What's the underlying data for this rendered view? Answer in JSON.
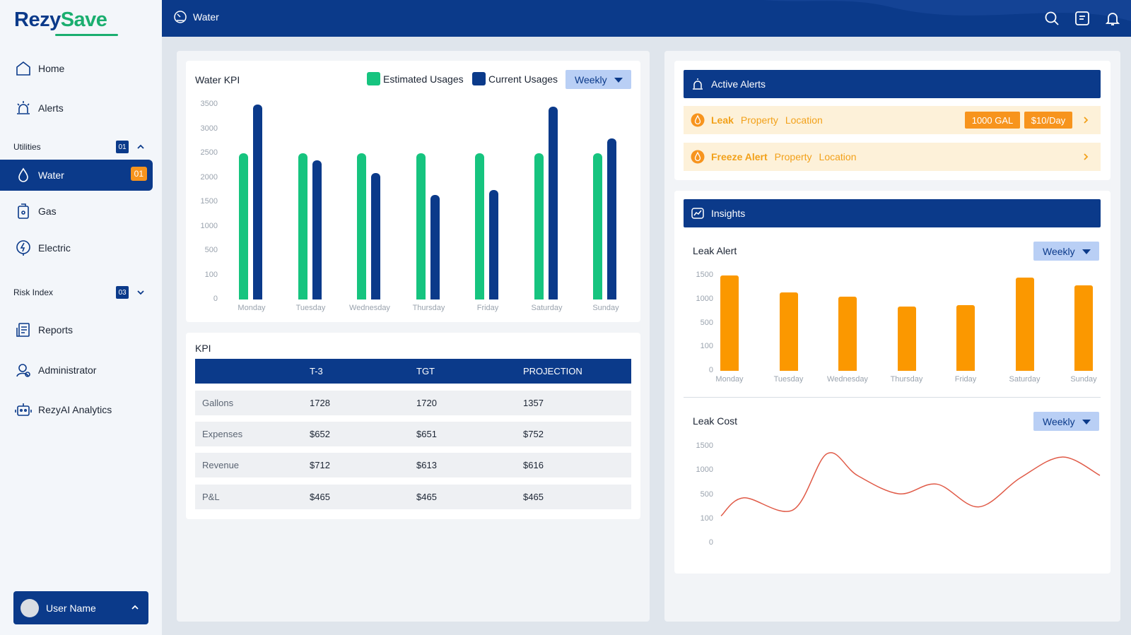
{
  "app": {
    "logo_part1": "Rezy",
    "logo_part2": "Save",
    "page_title": "Water"
  },
  "colors": {
    "primary": "#0b3a8a",
    "estimated": "#16c47f",
    "current": "#0b3a8a",
    "leak_bar": "#fb9800",
    "line": "#e05a47",
    "alert_bg": "#fdf1d9",
    "alert_text": "#f2a11a"
  },
  "sidebar": {
    "items_top": [
      {
        "label": "Home",
        "icon": "home-icon"
      },
      {
        "label": "Alerts",
        "icon": "alarm-icon"
      }
    ],
    "utilities": {
      "label": "Utilities",
      "badge": "01",
      "items": [
        {
          "label": "Water",
          "icon": "water-drop-icon",
          "badge": "01",
          "active": true
        },
        {
          "label": "Gas",
          "icon": "gas-icon"
        },
        {
          "label": "Electric",
          "icon": "electric-icon"
        }
      ]
    },
    "risk_index": {
      "label": "Risk Index",
      "badge": "03"
    },
    "items_bottom": [
      {
        "label": "Reports",
        "icon": "reports-icon"
      },
      {
        "label": "Administrator",
        "icon": "administrator-icon"
      },
      {
        "label": "RezyAI Analytics",
        "icon": "robot-icon"
      }
    ],
    "user": {
      "name": "User Name"
    }
  },
  "topbar": {
    "icons": [
      "search-icon",
      "notes-icon",
      "bell-icon"
    ]
  },
  "water_kpi": {
    "title": "Water KPI",
    "legend_estimated": "Estimated Usages",
    "legend_current": "Current Usages",
    "dropdown": "Weekly",
    "y_ticks": [
      "3500",
      "3000",
      "2500",
      "2000",
      "1500",
      "1000",
      "500",
      "100",
      "0"
    ]
  },
  "kpi_table": {
    "title": "KPI",
    "columns": [
      "T-3",
      "TGT",
      "PROJECTION"
    ],
    "rows": [
      {
        "label": "Gallons",
        "values": [
          "1728",
          "1720",
          "1357"
        ]
      },
      {
        "label": "Expenses",
        "values": [
          "$652",
          "$651",
          "$752"
        ]
      },
      {
        "label": "Revenue",
        "values": [
          "$712",
          "$613",
          "$616"
        ]
      },
      {
        "label": "P&L",
        "values": [
          "$465",
          "$465",
          "$465"
        ]
      }
    ]
  },
  "active_alerts": {
    "title": "Active Alerts",
    "alerts": [
      {
        "type": "Leak",
        "property": "Property",
        "location": "Location",
        "amount": "1000 GAL",
        "cost": "$10/Day"
      },
      {
        "type": "Freeze Alert",
        "property": "Property",
        "location": "Location"
      }
    ]
  },
  "insights": {
    "title": "Insights",
    "leak_alert": {
      "title": "Leak Alert",
      "dropdown": "Weekly",
      "y_ticks": [
        "1500",
        "1000",
        "500",
        "100",
        "0"
      ]
    },
    "leak_cost": {
      "title": "Leak Cost",
      "dropdown": "Weekly",
      "y_ticks": [
        "1500",
        "1000",
        "500",
        "100",
        "0"
      ]
    }
  },
  "chart_data": [
    {
      "type": "bar",
      "title": "Water KPI",
      "categories": [
        "Monday",
        "Tuesday",
        "Wednesday",
        "Thursday",
        "Friday",
        "Saturday",
        "Sunday"
      ],
      "y_ticks": [
        0,
        100,
        500,
        1000,
        1500,
        2000,
        2500,
        3000,
        3500
      ],
      "series": [
        {
          "name": "Estimated Usages",
          "values": [
            2500,
            2500,
            2500,
            2500,
            2500,
            2500,
            2500
          ]
        },
        {
          "name": "Current Usages",
          "values": [
            3500,
            2350,
            2100,
            1650,
            1750,
            3450,
            2800
          ]
        }
      ],
      "legend": "top-right"
    },
    {
      "type": "bar",
      "title": "Leak Alert",
      "categories": [
        "Monday",
        "Tuesday",
        "Wednesday",
        "Thursday",
        "Friday",
        "Saturday",
        "Sunday"
      ],
      "y_ticks": [
        0,
        100,
        500,
        1000,
        1500
      ],
      "values": [
        1500,
        1150,
        1050,
        850,
        880,
        1450,
        1300
      ]
    },
    {
      "type": "line",
      "title": "Leak Cost",
      "y_ticks": [
        0,
        100,
        500,
        1000,
        1500
      ],
      "points": [
        [
          0,
          150
        ],
        [
          0.06,
          450
        ],
        [
          0.19,
          250
        ],
        [
          0.28,
          1350
        ],
        [
          0.36,
          900
        ],
        [
          0.47,
          520
        ],
        [
          0.57,
          720
        ],
        [
          0.68,
          300
        ],
        [
          0.79,
          850
        ],
        [
          0.9,
          1280
        ],
        [
          1.0,
          900
        ]
      ]
    }
  ]
}
